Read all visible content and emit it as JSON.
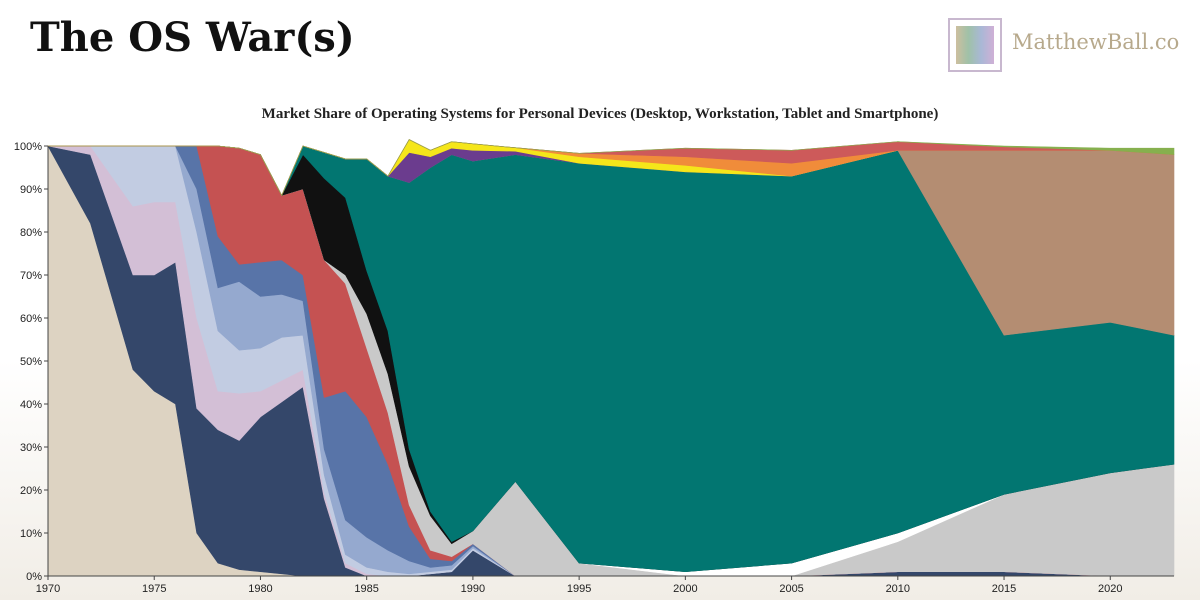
{
  "header": {
    "title": "The OS War(s)",
    "logo_text": "MatthewBall.co"
  },
  "chart_data": {
    "type": "area",
    "stacked": true,
    "title": "Market Share of Operating Systems for Personal Devices (Desktop, Workstation, Tablet and Smartphone)",
    "xlabel": "",
    "ylabel": "",
    "xlim": [
      1970,
      2023
    ],
    "ylim": [
      0,
      100
    ],
    "x_ticks": [
      1970,
      1975,
      1980,
      1985,
      1990,
      1995,
      2000,
      2005,
      2010,
      2015,
      2020
    ],
    "y_ticks": [
      "0%",
      "10%",
      "20%",
      "30%",
      "40%",
      "50%",
      "60%",
      "70%",
      "80%",
      "90%",
      "100%"
    ],
    "legend": "none",
    "x": [
      1970,
      1972,
      1974,
      1975,
      1976,
      1977,
      1978,
      1979,
      1980,
      1981,
      1982,
      1983,
      1984,
      1985,
      1986,
      1987,
      1988,
      1989,
      1990,
      1992,
      1995,
      2000,
      2005,
      2010,
      2015,
      2020,
      2023
    ],
    "series": [
      {
        "color": "#ddd3c2",
        "values": [
          100,
          82,
          48,
          43,
          40,
          10,
          3,
          1.5,
          1,
          0.5,
          0,
          0,
          0,
          0,
          0,
          0,
          0,
          0,
          0,
          0,
          0,
          0,
          0,
          0,
          0,
          0,
          0
        ]
      },
      {
        "color": "#34476a",
        "values": [
          0,
          16,
          22,
          27,
          33,
          29,
          31,
          30,
          36,
          40,
          44,
          18,
          2,
          0,
          0,
          0,
          0.5,
          1,
          6,
          0,
          0,
          0,
          0,
          1,
          1,
          0,
          0
        ]
      },
      {
        "color": "#d3bfd6",
        "values": [
          0,
          2,
          16,
          17,
          14,
          21,
          9,
          11,
          6,
          5,
          4,
          1.5,
          1,
          0.5,
          0,
          0,
          0,
          0,
          0,
          0,
          0,
          0,
          0,
          0,
          0,
          0,
          0
        ]
      },
      {
        "color": "#c2cce2",
        "values": [
          0,
          0,
          14,
          13,
          13,
          20,
          14,
          10,
          10,
          10,
          8,
          4,
          2,
          1.5,
          1,
          0.5,
          0.5,
          0.5,
          0.5,
          0,
          0,
          0,
          0,
          0,
          0,
          0,
          0
        ]
      },
      {
        "color": "#95a9cf",
        "values": [
          0,
          0,
          0,
          0,
          0,
          10,
          10,
          16,
          12,
          10,
          8,
          6,
          8,
          7,
          5,
          3,
          1,
          1,
          0.5,
          0,
          0,
          0,
          0,
          0,
          0,
          0,
          0
        ]
      },
      {
        "color": "#5874a8",
        "values": [
          0,
          0,
          0,
          0,
          0,
          10,
          12,
          4,
          8,
          8,
          6,
          12,
          30,
          28,
          20,
          8,
          2,
          1,
          0.5,
          0,
          0,
          0,
          0,
          0,
          0,
          0,
          0
        ]
      },
      {
        "color": "#c55252",
        "values": [
          0,
          0,
          0,
          0,
          0,
          0,
          21,
          27,
          25,
          15,
          20,
          32,
          25,
          16,
          12,
          5,
          2,
          1,
          0,
          0,
          0,
          0,
          0,
          0,
          0,
          0,
          0
        ]
      },
      {
        "color": "#c9c9c9",
        "values": [
          0,
          0,
          0,
          0,
          0,
          0,
          0,
          0,
          0,
          0,
          0,
          0,
          2,
          8,
          9,
          9,
          8,
          3,
          3,
          22,
          3,
          0,
          0,
          7,
          18,
          24,
          26
        ]
      },
      {
        "color": "#ffffff",
        "values": [
          0,
          0,
          0,
          0,
          0,
          0,
          0,
          0,
          0,
          0,
          0,
          0,
          0,
          0,
          0,
          0,
          0,
          0,
          0,
          0,
          0,
          1,
          3,
          2,
          0,
          0,
          0
        ]
      },
      {
        "color": "#111111",
        "values": [
          0,
          0,
          0,
          0,
          0,
          0,
          0,
          0,
          0,
          0,
          8,
          19,
          18,
          10,
          10,
          4,
          1,
          0.5,
          0,
          0,
          0,
          0,
          0,
          0,
          0,
          0,
          0
        ]
      },
      {
        "color": "#027671",
        "values": [
          0,
          0,
          0,
          0,
          0,
          0,
          0,
          0,
          0,
          0,
          2,
          6,
          9,
          26,
          36,
          62,
          80,
          90,
          86,
          76,
          93,
          93,
          90,
          89,
          37,
          35,
          30
        ]
      },
      {
        "color": "#b48d72",
        "values": [
          0,
          0,
          0,
          0,
          0,
          0,
          0,
          0,
          0,
          0,
          0,
          0,
          0,
          0,
          0,
          0,
          0,
          0,
          0,
          0,
          0,
          0,
          0,
          0,
          43,
          40,
          42
        ]
      },
      {
        "color": "#6b3c8e",
        "values": [
          0,
          0,
          0,
          0,
          0,
          0,
          0,
          0,
          0,
          0,
          0,
          0,
          0,
          0,
          0,
          7,
          2.5,
          1.5,
          2.5,
          0.8,
          0,
          0,
          0,
          0,
          0,
          0,
          0
        ]
      },
      {
        "color": "#f5e61a",
        "values": [
          0,
          0,
          0,
          0,
          0,
          0,
          0,
          0,
          0,
          0,
          0,
          0,
          0,
          0,
          0,
          3,
          1.5,
          1.5,
          1.5,
          0.8,
          1.5,
          1.5,
          0,
          0,
          0,
          0,
          0
        ]
      },
      {
        "color": "#f08c3a",
        "values": [
          0,
          0,
          0,
          0,
          0,
          0,
          0,
          0,
          0,
          0,
          0,
          0,
          0,
          0,
          0,
          0,
          0,
          0,
          0,
          0,
          0.8,
          2,
          3,
          0,
          0,
          0,
          0
        ]
      },
      {
        "color": "#cd5a5a",
        "values": [
          0,
          0,
          0,
          0,
          0,
          0,
          0,
          0,
          0,
          0,
          0,
          0,
          0,
          0,
          0,
          0,
          0,
          0,
          0,
          0,
          0,
          2,
          3,
          2,
          0.8,
          0,
          0
        ]
      },
      {
        "color": "#86b04e",
        "values": [
          0,
          0,
          0,
          0,
          0,
          0,
          0,
          0,
          0,
          0,
          0,
          0,
          0,
          0,
          0,
          0,
          0,
          0,
          0,
          0,
          0,
          0,
          0,
          0,
          0.2,
          0.5,
          1.5
        ]
      }
    ]
  }
}
